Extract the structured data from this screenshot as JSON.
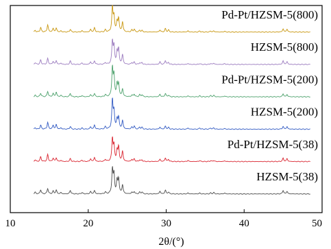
{
  "chart_data": {
    "type": "line",
    "xlabel": "2θ/(°)",
    "xlim": [
      10,
      50
    ],
    "xticks": [
      10,
      20,
      30,
      40,
      50
    ],
    "y_axis": "none",
    "grid": false,
    "layout": "stacked",
    "peaks": [
      [
        13.2,
        0.06
      ],
      [
        13.9,
        0.16
      ],
      [
        14.8,
        0.24
      ],
      [
        15.5,
        0.13
      ],
      [
        15.9,
        0.16
      ],
      [
        16.5,
        0.05
      ],
      [
        17.7,
        0.12
      ],
      [
        19.2,
        0.05
      ],
      [
        20.3,
        0.09
      ],
      [
        20.8,
        0.14
      ],
      [
        22.2,
        0.08
      ],
      [
        23.1,
        1.0
      ],
      [
        23.3,
        0.68
      ],
      [
        23.7,
        0.42
      ],
      [
        23.9,
        0.5
      ],
      [
        24.4,
        0.34
      ],
      [
        25.6,
        0.07
      ],
      [
        25.9,
        0.1
      ],
      [
        26.6,
        0.07
      ],
      [
        26.9,
        0.07
      ],
      [
        29.2,
        0.09
      ],
      [
        29.9,
        0.13
      ],
      [
        30.3,
        0.07
      ],
      [
        32.8,
        0.04
      ],
      [
        34.3,
        0.04
      ],
      [
        35.7,
        0.04
      ],
      [
        36.1,
        0.05
      ],
      [
        37.5,
        0.03
      ],
      [
        45.0,
        0.12
      ],
      [
        45.5,
        0.1
      ]
    ],
    "series": [
      {
        "name": "Pd-Pt/HZSM-5(800)",
        "color": "#c8960e"
      },
      {
        "name": "HZSM-5(800)",
        "color": "#9b7bbf"
      },
      {
        "name": "Pd-Pt/HZSM-5(200)",
        "color": "#4aa06a"
      },
      {
        "name": "HZSM-5(200)",
        "color": "#2f58c2"
      },
      {
        "name": "Pd-Pt/HZSM-5(38)",
        "color": "#d9232e"
      },
      {
        "name": "HZSM-5(38)",
        "color": "#4a4a4a"
      }
    ]
  }
}
